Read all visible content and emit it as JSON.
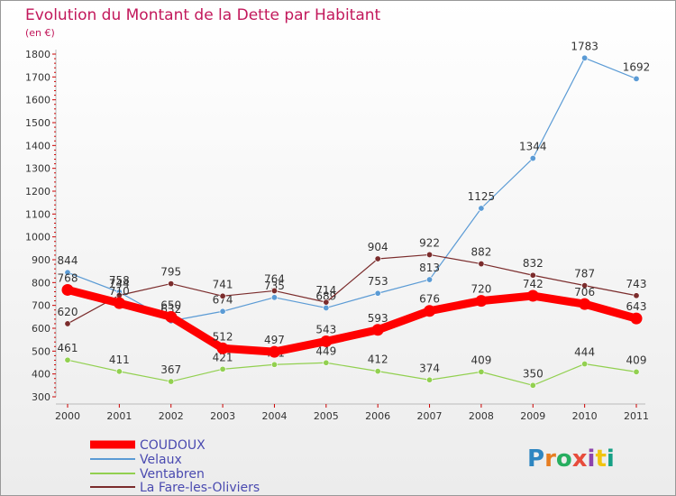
{
  "chart_data": {
    "type": "line",
    "title": "Evolution du Montant de la Dette par Habitant",
    "subtitle": "(en €)",
    "x": [
      "2000",
      "2001",
      "2002",
      "2003",
      "2004",
      "2005",
      "2006",
      "2007",
      "2008",
      "2009",
      "2010",
      "2011"
    ],
    "ylim": [
      300,
      1800
    ],
    "yticks": [
      300,
      400,
      500,
      600,
      700,
      800,
      900,
      1000,
      1100,
      1200,
      1300,
      1400,
      1500,
      1600,
      1700,
      1800
    ],
    "series": [
      {
        "name": "COUDOUX",
        "color": "#ff0000",
        "values": [
          768,
          710,
          650,
          512,
          497,
          543,
          593,
          676,
          720,
          742,
          706,
          643
        ]
      },
      {
        "name": "Velaux",
        "color": "#5b9bd5",
        "values": [
          844,
          758,
          632,
          674,
          735,
          689,
          753,
          813,
          1125,
          1344,
          1783,
          1692
        ]
      },
      {
        "name": "Ventabren",
        "color": "#92d050",
        "values": [
          461,
          411,
          367,
          421,
          441,
          449,
          412,
          374,
          409,
          350,
          444,
          409
        ]
      },
      {
        "name": "La Fare-les-Oliviers",
        "color": "#7b2c2c",
        "values": [
          620,
          744,
          795,
          741,
          764,
          714,
          904,
          922,
          882,
          832,
          787,
          743
        ]
      }
    ]
  },
  "logo": {
    "text": "Proxiti"
  }
}
